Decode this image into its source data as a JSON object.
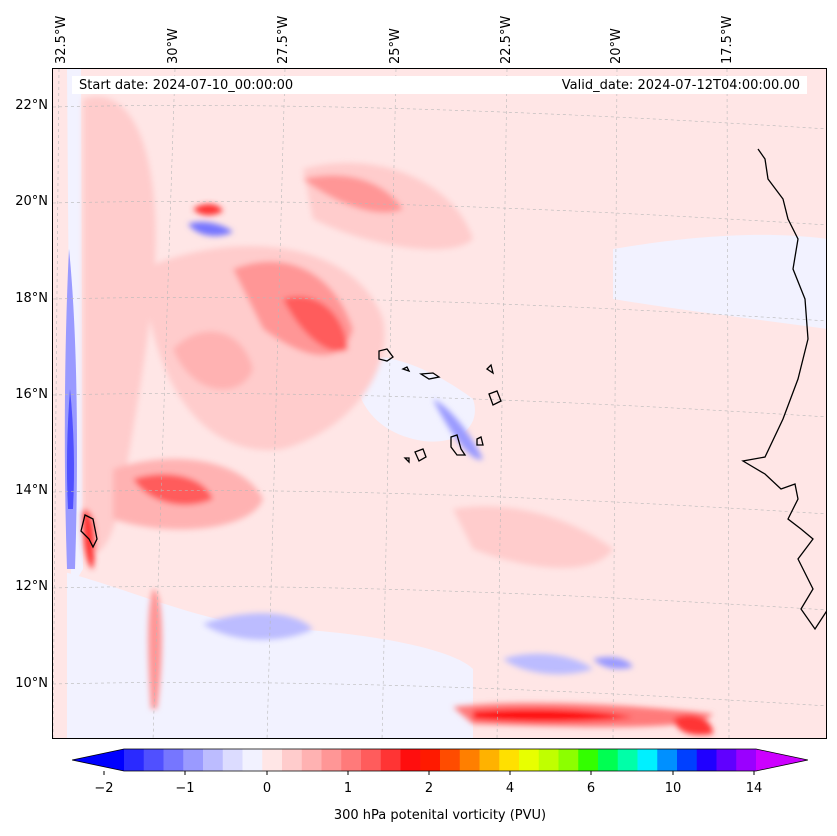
{
  "map": {
    "start_date": "Start date: 2024-07-10_00:00:00",
    "valid_date": "Valid_date: 2024-07-12T04:00:00.00",
    "longitude_labels": [
      "32.5°W",
      "30°W",
      "27.5°W",
      "25°W",
      "22.5°W",
      "20°W",
      "17.5°W"
    ],
    "latitude_labels": [
      "22°N",
      "20°N",
      "18°N",
      "16°N",
      "14°N",
      "12°N",
      "10°N"
    ],
    "colorbar": {
      "label": "300 hPa potenital vorticity (PVU)",
      "ticks": [
        "−2",
        "−1",
        "0",
        "1",
        "2",
        "4",
        "6",
        "10",
        "14"
      ],
      "colors": [
        "#0000ff",
        "#2a2aff",
        "#5050ff",
        "#7676ff",
        "#9a9aff",
        "#bcbcff",
        "#dcdcff",
        "#f2f2ff",
        "#ffe6e6",
        "#ffcccc",
        "#ffb2b2",
        "#ff9696",
        "#ff7a7a",
        "#ff5c5c",
        "#ff3434",
        "#ff0e0e",
        "#ff1a00",
        "#ff4c00",
        "#ff7f00",
        "#ffb200",
        "#ffe000",
        "#e8ff00",
        "#c0ff00",
        "#8cff00",
        "#33ff00",
        "#00ff52",
        "#00ffa8",
        "#00f0ff",
        "#0090ff",
        "#0040ff",
        "#2000ff",
        "#6000ff",
        "#9a00ff",
        "#cc00ff"
      ]
    }
  }
}
